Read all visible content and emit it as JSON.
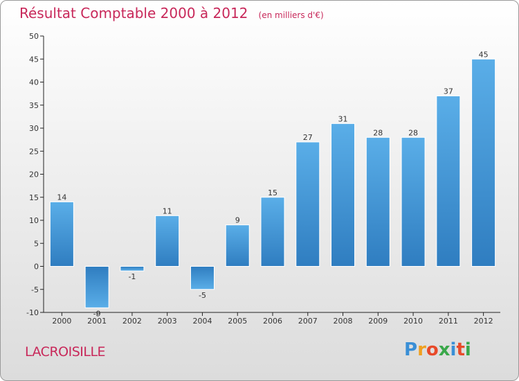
{
  "chart_data": {
    "type": "bar",
    "title": "Résultat Comptable 2000 à 2012",
    "subtitle": "(en milliers d'€)",
    "categories": [
      "2000",
      "2001",
      "2002",
      "2003",
      "2004",
      "2005",
      "2006",
      "2007",
      "2008",
      "2009",
      "2010",
      "2011",
      "2012"
    ],
    "values": [
      14,
      -9,
      -1,
      11,
      -5,
      9,
      15,
      27,
      31,
      28,
      28,
      37,
      45
    ],
    "value_labels": [
      "14",
      "-9",
      "-1",
      "11",
      "-5",
      "9",
      "15",
      "27",
      "31",
      "28",
      "28",
      "37",
      "45"
    ],
    "y_ticks": [
      50,
      45,
      40,
      35,
      30,
      25,
      20,
      15,
      10,
      5,
      0,
      -5,
      -10
    ],
    "ylim": [
      -10,
      50
    ],
    "xlabel": "",
    "ylabel": "",
    "grid": false,
    "legend": "none"
  },
  "footer": {
    "commune": "LACROISILLE",
    "brand_letters": [
      "P",
      "r",
      "o",
      "x",
      "i",
      "t",
      "i"
    ]
  },
  "colors": {
    "title": "#c8285a",
    "bar_light": "#5aaee8",
    "bar_dark": "#2f7dc0",
    "brand": [
      "#3a8fd6",
      "#f0a020",
      "#e84a2a",
      "#3aa84a",
      "#3a8fd6",
      "#e84a2a",
      "#3aa84a"
    ]
  }
}
